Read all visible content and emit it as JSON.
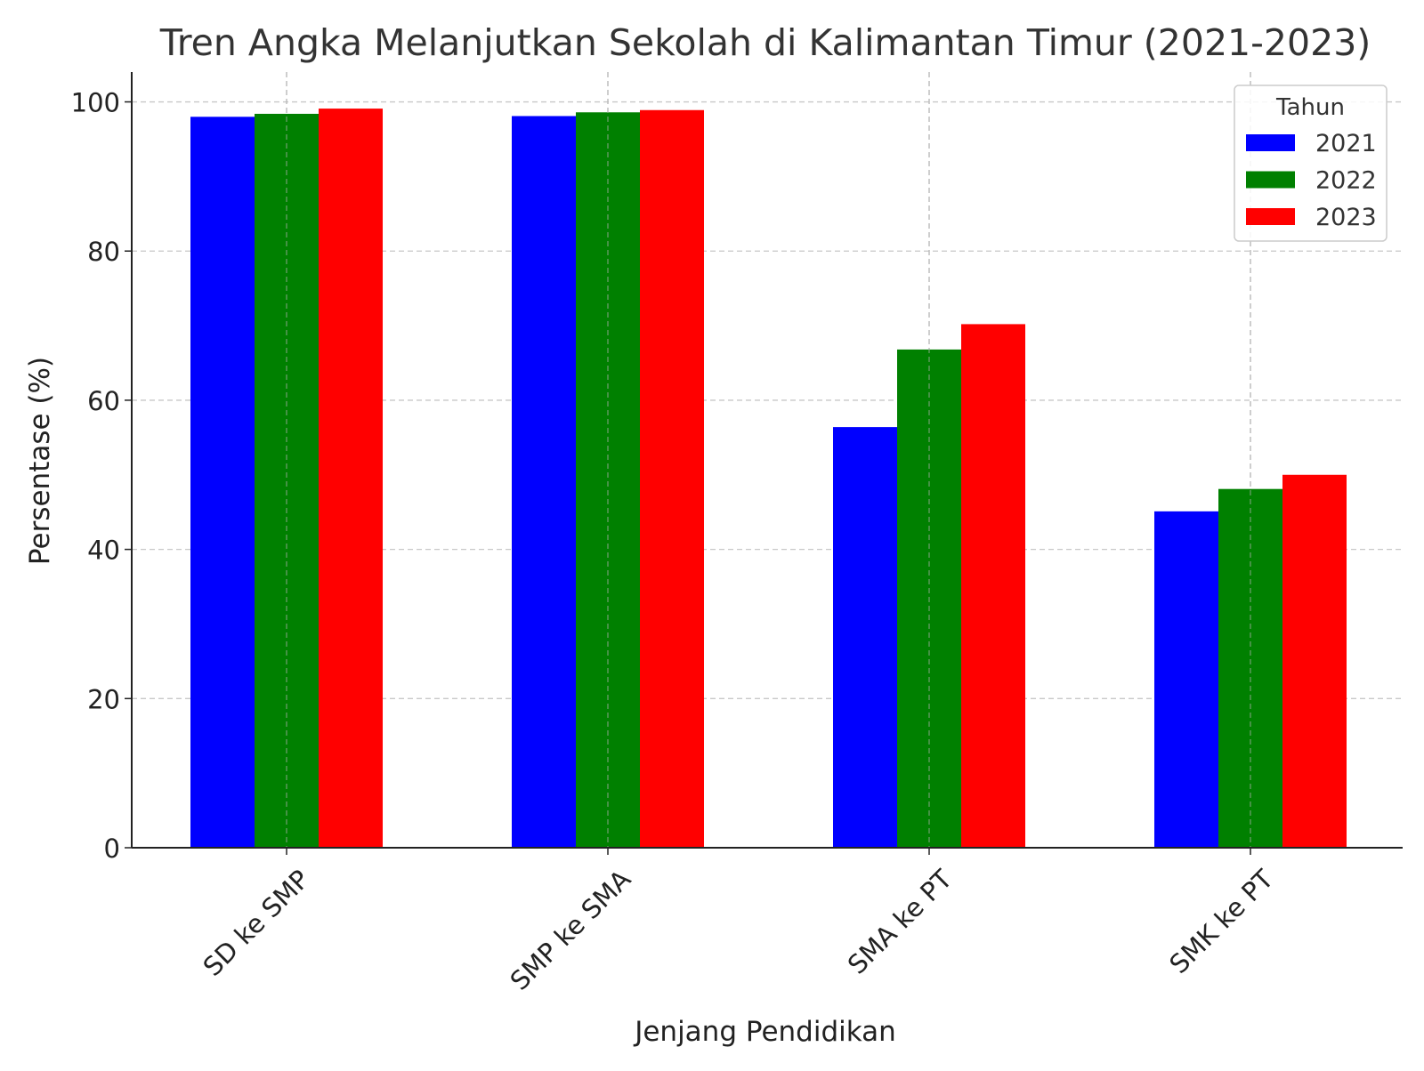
{
  "chart_data": {
    "type": "bar",
    "title": "Tren Angka Melanjutkan Sekolah di Kalimantan Timur (2021-2023)",
    "xlabel": "Jenjang Pendidikan",
    "ylabel": "Persentase (%)",
    "categories": [
      "SD ke SMP",
      "SMP ke SMA",
      "SMA ke PT",
      "SMK ke PT"
    ],
    "series": [
      {
        "name": "2021",
        "color": "#0000ff",
        "values": [
          98.0,
          98.1,
          56.4,
          45.1
        ]
      },
      {
        "name": "2022",
        "color": "#008000",
        "values": [
          98.4,
          98.6,
          66.8,
          48.1
        ]
      },
      {
        "name": "2023",
        "color": "#ff0000",
        "values": [
          99.1,
          98.9,
          70.2,
          50.0
        ]
      }
    ],
    "ylim": [
      0,
      104
    ],
    "yticks": [
      0,
      20,
      40,
      60,
      80,
      100
    ],
    "grid": true,
    "legend": {
      "title": "Tahun",
      "position": "top-right"
    }
  }
}
